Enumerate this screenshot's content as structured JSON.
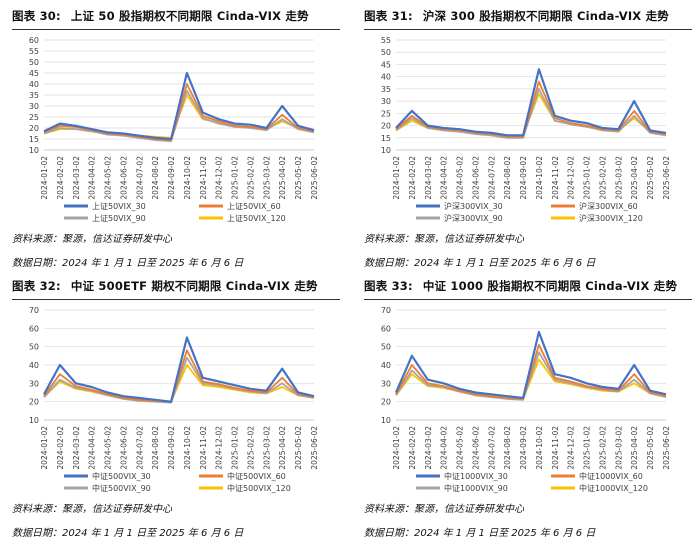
{
  "source_label": "资料来源：聚源，信达证券研发中心",
  "date_label": "数据日期：2024 年 1 月 1 日至 2025 年 6 月 6 日",
  "panels": [
    {
      "fig": "图表 30:",
      "title": "上证 50 股指期权不同期限 Cinda-VIX 走势"
    },
    {
      "fig": "图表 31:",
      "title": "沪深 300 股指期权不同期限 Cinda-VIX 走势"
    },
    {
      "fig": "图表 32:",
      "title": "中证 500ETF 期权不同期限 Cinda-VIX 走势"
    },
    {
      "fig": "图表 33:",
      "title": "中证 1000 股指期权不同期限 Cinda-VIX 走势"
    }
  ],
  "colors": {
    "s30": "#4472C4",
    "s60": "#ED7D31",
    "s90": "#A5A5A5",
    "s120": "#FFC000",
    "grid": "#D9D9D9",
    "axis": "#BFBFBF"
  },
  "chart_data": [
    {
      "type": "line",
      "x": [
        "2024-01-02",
        "2024-02-02",
        "2024-03-02",
        "2024-04-02",
        "2024-05-02",
        "2024-06-02",
        "2024-07-02",
        "2024-08-02",
        "2024-09-02",
        "2024-10-02",
        "2024-11-02",
        "2024-12-02",
        "2025-01-02",
        "2025-02-02",
        "2025-03-02",
        "2025-04-02",
        "2025-05-02",
        "2025-06-02"
      ],
      "ylim": [
        10,
        60
      ],
      "yticks": [
        10,
        15,
        20,
        25,
        30,
        35,
        40,
        45,
        50,
        55,
        60
      ],
      "series": [
        {
          "name": "上证50VIX_30",
          "values": [
            18.5,
            22,
            21,
            19.5,
            18,
            17.5,
            16.5,
            15.5,
            15,
            45,
            27,
            24,
            22,
            21.5,
            20,
            30,
            21,
            19
          ]
        },
        {
          "name": "上证50VIX_60",
          "values": [
            18,
            21,
            20.5,
            19,
            17.5,
            17,
            16,
            15,
            14.5,
            40,
            25.5,
            23,
            21,
            20.5,
            19.5,
            26,
            20,
            18.5
          ]
        },
        {
          "name": "上证50VIX_90",
          "values": [
            17.5,
            20,
            19.5,
            18.5,
            17,
            16.5,
            15.5,
            14.5,
            14,
            37,
            24.5,
            22,
            20.5,
            20,
            19,
            24,
            19.5,
            18
          ]
        },
        {
          "name": "上证50VIX_120",
          "values": [
            17.5,
            19.5,
            19.5,
            18.5,
            17.5,
            17,
            16.5,
            16,
            15.5,
            35,
            24,
            22.5,
            21,
            20.5,
            19.5,
            23,
            20,
            19
          ]
        }
      ]
    },
    {
      "type": "line",
      "x": [
        "2024-01-02",
        "2024-02-02",
        "2024-03-02",
        "2024-04-02",
        "2024-05-02",
        "2024-06-02",
        "2024-07-02",
        "2024-08-02",
        "2024-09-02",
        "2024-10-02",
        "2024-11-02",
        "2024-12-02",
        "2025-01-02",
        "2025-02-02",
        "2025-03-02",
        "2025-04-02",
        "2025-05-02",
        "2025-06-02"
      ],
      "ylim": [
        10,
        55
      ],
      "yticks": [
        10,
        15,
        20,
        25,
        30,
        35,
        40,
        45,
        50,
        55
      ],
      "series": [
        {
          "name": "沪深300VIX_30",
          "values": [
            19,
            26,
            20,
            19,
            18.5,
            17.5,
            17,
            16,
            16,
            43,
            24,
            22,
            21,
            19,
            18.5,
            30,
            18,
            17
          ]
        },
        {
          "name": "沪深300VIX_60",
          "values": [
            18.5,
            24,
            19.5,
            18.5,
            18,
            17,
            16.5,
            15.5,
            15.5,
            38,
            23,
            21,
            20,
            18.5,
            18,
            26,
            17.5,
            16.5
          ]
        },
        {
          "name": "沪深300VIX_90",
          "values": [
            18,
            23,
            19,
            18,
            17.5,
            16.5,
            16,
            15,
            15,
            35,
            22,
            20.5,
            19.5,
            18,
            17.5,
            24,
            17,
            16
          ]
        },
        {
          "name": "沪深300VIX_120",
          "values": [
            18,
            22,
            19,
            18,
            17.5,
            17,
            16.5,
            16,
            16,
            33,
            22,
            20.5,
            19.5,
            18.5,
            18,
            23,
            17.5,
            17
          ]
        }
      ]
    },
    {
      "type": "line",
      "x": [
        "2024-01-02",
        "2024-02-02",
        "2024-03-02",
        "2024-04-02",
        "2024-05-02",
        "2024-06-02",
        "2024-07-02",
        "2024-08-02",
        "2024-09-02",
        "2024-10-02",
        "2024-11-02",
        "2024-12-02",
        "2025-01-02",
        "2025-02-02",
        "2025-03-02",
        "2025-04-02",
        "2025-05-02",
        "2025-06-02"
      ],
      "ylim": [
        10,
        70
      ],
      "yticks": [
        10,
        20,
        30,
        40,
        50,
        60,
        70
      ],
      "series": [
        {
          "name": "中证500VIX_30",
          "values": [
            24,
            40,
            30,
            28,
            25,
            23,
            22,
            21,
            20,
            55,
            33,
            31,
            29,
            27,
            26,
            38,
            25,
            23
          ]
        },
        {
          "name": "中证500VIX_60",
          "values": [
            23,
            35,
            28.5,
            26.5,
            24,
            22,
            21,
            20.5,
            20,
            48,
            31,
            29.5,
            27.5,
            26,
            25,
            33,
            24,
            22.5
          ]
        },
        {
          "name": "中证500VIX_90",
          "values": [
            22.5,
            32,
            27.5,
            26,
            23.5,
            21.5,
            20.5,
            20,
            19.5,
            44,
            30,
            29,
            27,
            25.5,
            24.5,
            30,
            23.5,
            22
          ]
        },
        {
          "name": "中证500VIX_120",
          "values": [
            22.5,
            31,
            27,
            25.5,
            23.5,
            21.5,
            21,
            20.5,
            20,
            40,
            29,
            28,
            26.5,
            25,
            24.5,
            28,
            23.5,
            22.5
          ]
        }
      ]
    },
    {
      "type": "line",
      "x": [
        "2024-01-02",
        "2024-02-02",
        "2024-03-02",
        "2024-04-02",
        "2024-05-02",
        "2024-06-02",
        "2024-07-02",
        "2024-08-02",
        "2024-09-02",
        "2024-10-02",
        "2024-11-02",
        "2024-12-02",
        "2025-01-02",
        "2025-02-02",
        "2025-03-02",
        "2025-04-02",
        "2025-05-02",
        "2025-06-02"
      ],
      "ylim": [
        10,
        70
      ],
      "yticks": [
        10,
        20,
        30,
        40,
        50,
        60,
        70
      ],
      "series": [
        {
          "name": "中证1000VIX_30",
          "values": [
            25,
            45,
            32,
            30,
            27,
            25,
            24,
            23,
            22,
            58,
            35,
            33,
            30,
            28,
            27,
            40,
            26,
            24
          ]
        },
        {
          "name": "中证1000VIX_60",
          "values": [
            24,
            40,
            30,
            28.5,
            26,
            24,
            23,
            22,
            21.5,
            51,
            33,
            31,
            28.5,
            27,
            26,
            35,
            25,
            23
          ]
        },
        {
          "name": "中证1000VIX_90",
          "values": [
            23.5,
            37,
            29,
            28,
            25.5,
            23.5,
            22.5,
            21.5,
            21,
            47,
            32,
            30,
            28,
            26.5,
            25.5,
            32,
            24.5,
            22.5
          ]
        },
        {
          "name": "中证1000VIX_120",
          "values": [
            23.5,
            35,
            28.5,
            27.5,
            25.5,
            23.5,
            22.5,
            22,
            21.5,
            43,
            31,
            29.5,
            27.5,
            26,
            25.5,
            30,
            24.5,
            23
          ]
        }
      ]
    }
  ]
}
